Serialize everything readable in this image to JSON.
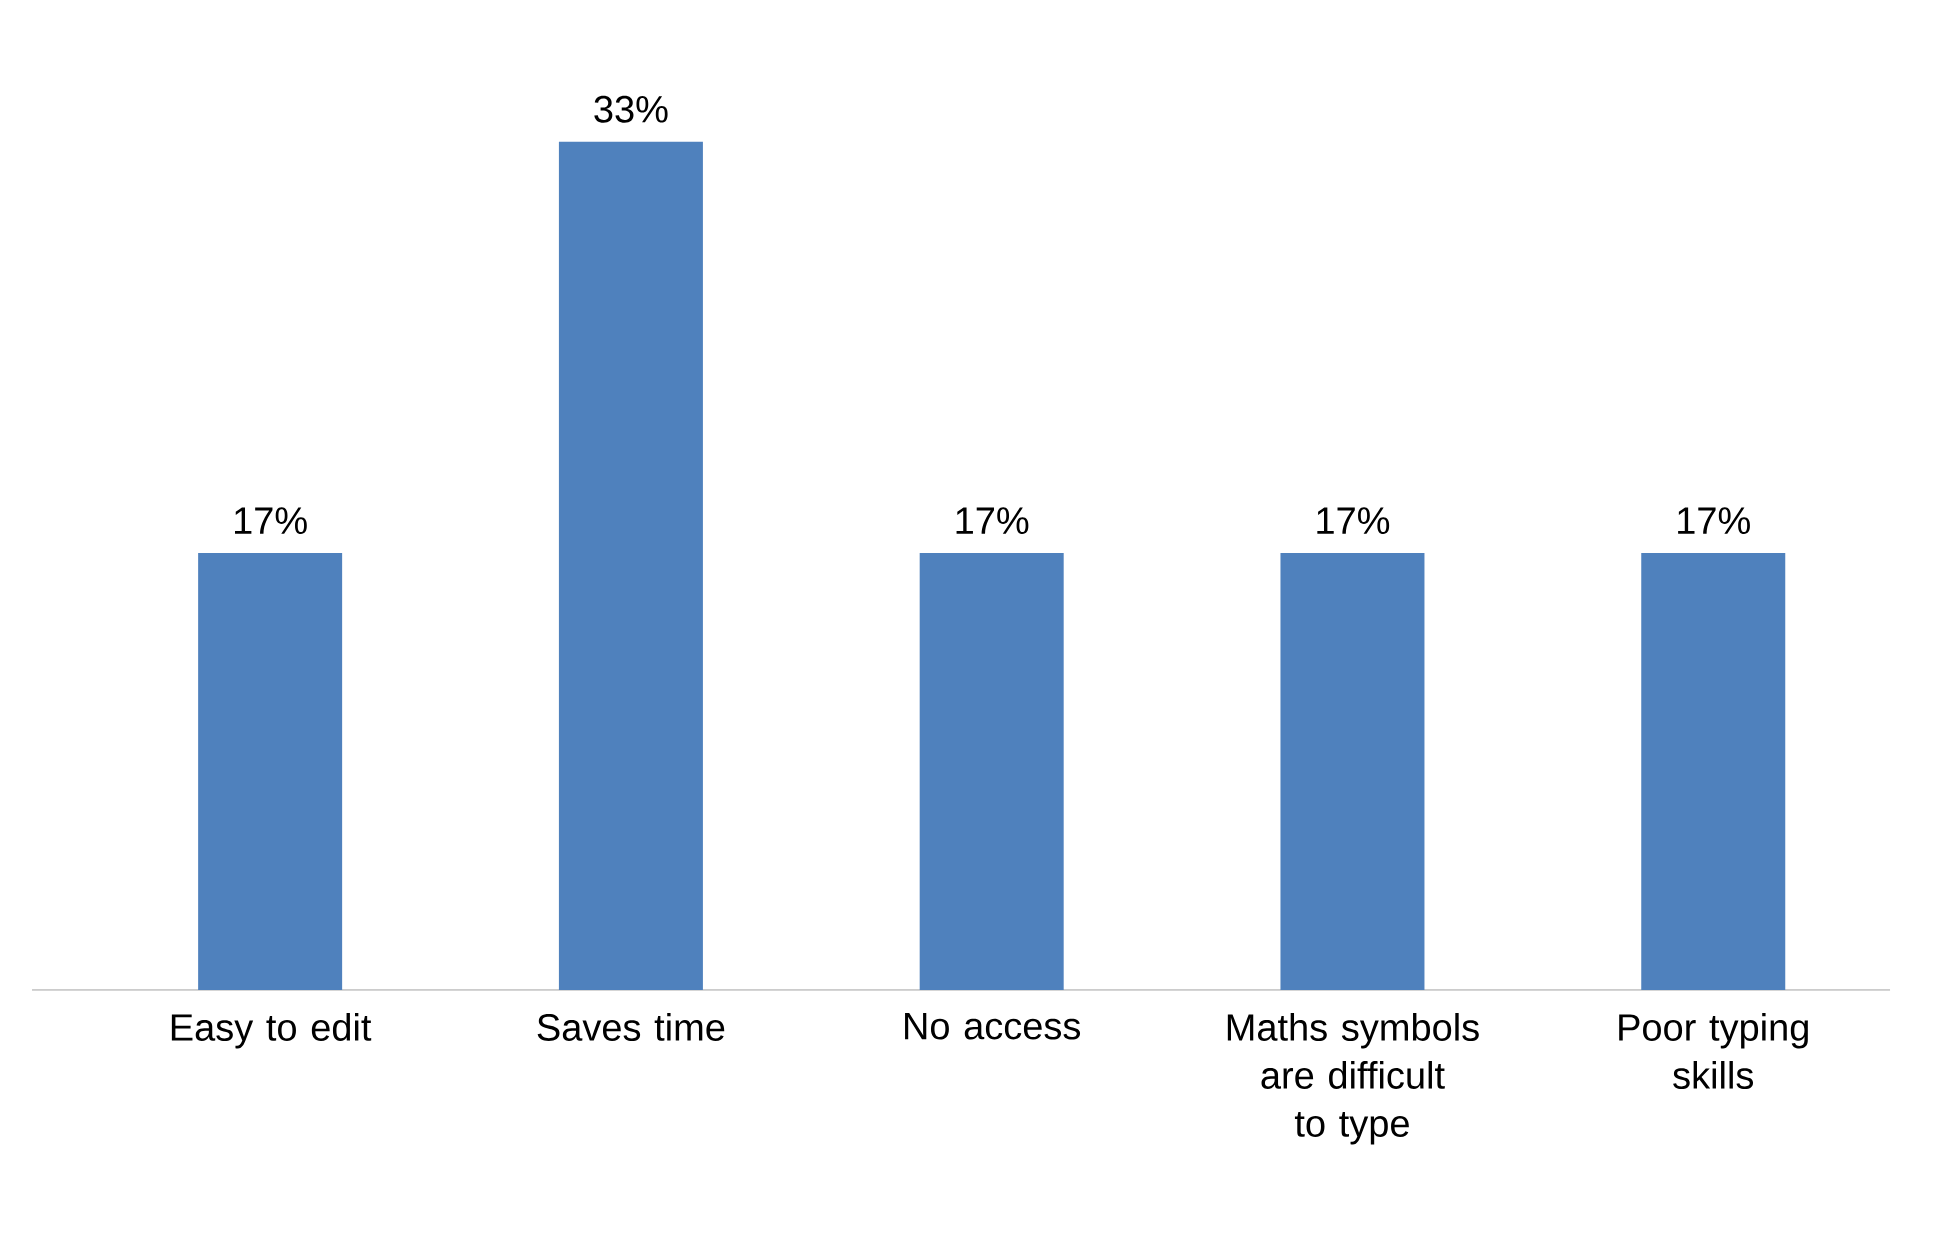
{
  "chart_data": {
    "type": "bar",
    "categories": [
      "Easy to edit",
      "Saves time",
      "No access",
      "Maths symbols are difficult to type",
      "Poor typing skills"
    ],
    "values": [
      17,
      33,
      17,
      17,
      17
    ],
    "value_labels": [
      "17%",
      "33%",
      "17%",
      "17%",
      "17%"
    ],
    "color": "#4f81bd"
  }
}
